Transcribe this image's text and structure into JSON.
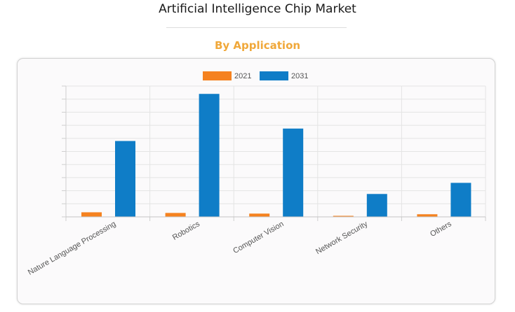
{
  "header": {
    "title": "Artificial Intelligence Chip Market",
    "subtitle": "By Application"
  },
  "chart_data": {
    "type": "bar",
    "categories": [
      "Nature Language Processing",
      "Robotics",
      "Computer Vision",
      "Network Security",
      "Others"
    ],
    "series": [
      {
        "name": "2021",
        "color": "#f5821f",
        "values": [
          3.5,
          3.0,
          2.5,
          0.8,
          2.0
        ]
      },
      {
        "name": "2031",
        "color": "#0f7dc7",
        "values": [
          58,
          94,
          67.5,
          17.5,
          26
        ]
      }
    ],
    "ylim": [
      0,
      100
    ],
    "grid": true,
    "legend": "top-center"
  }
}
